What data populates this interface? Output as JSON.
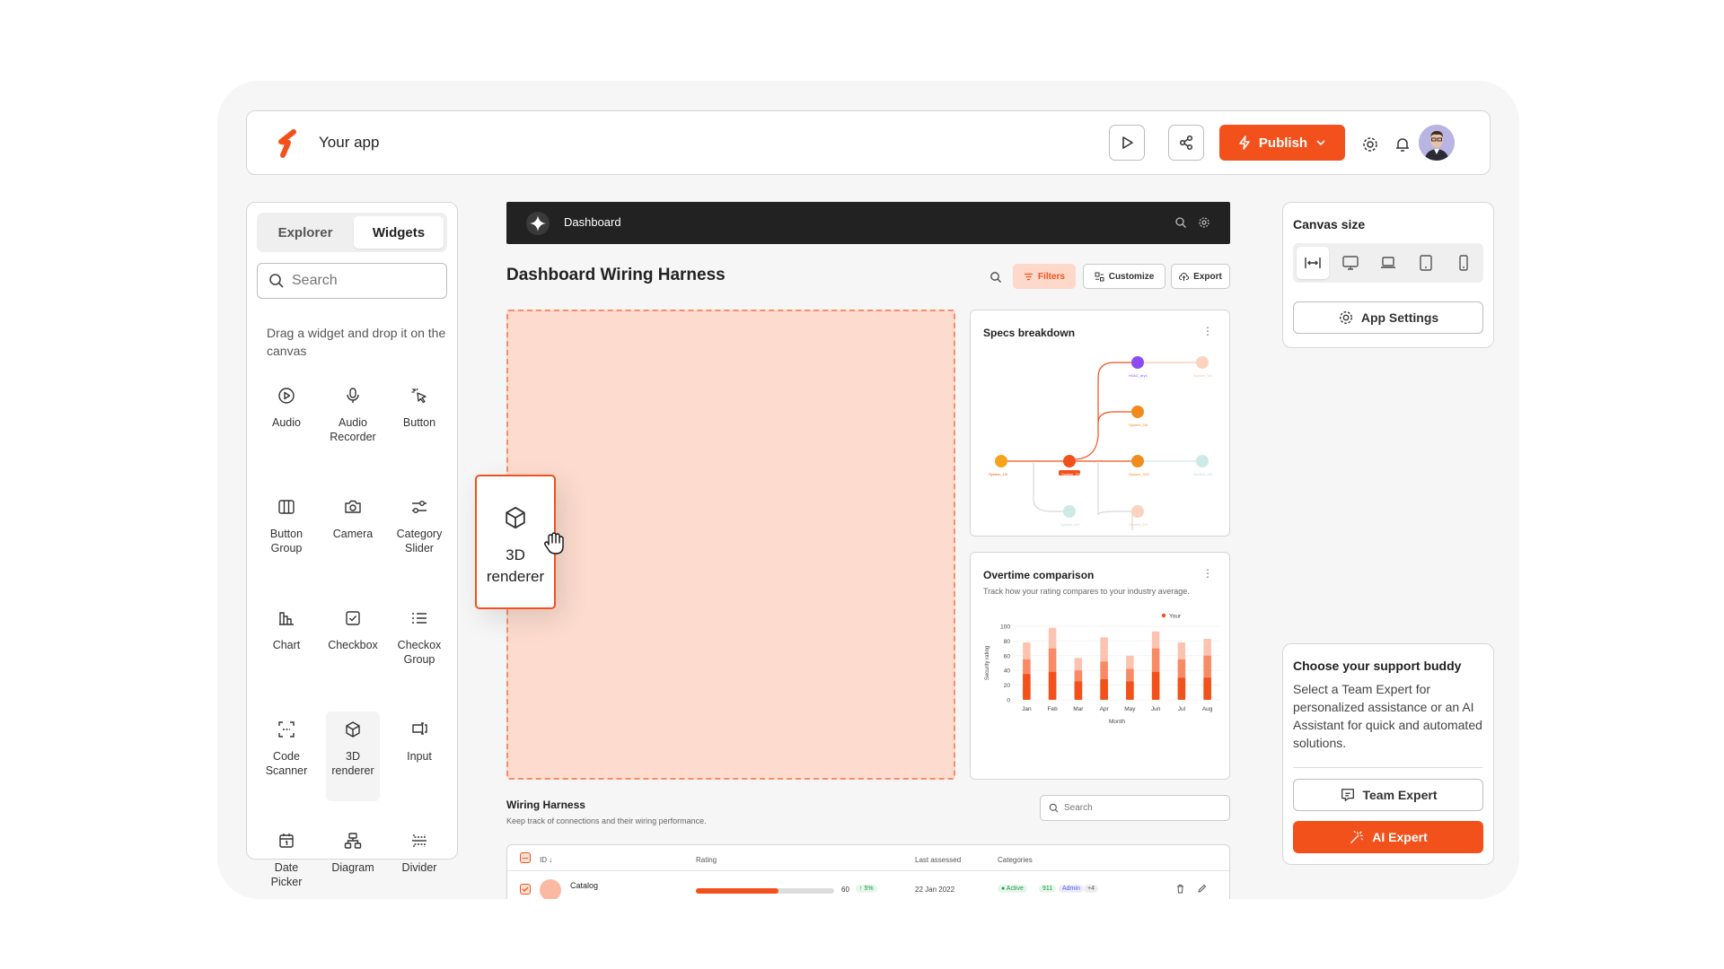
{
  "topbar": {
    "app_name": "Your app",
    "publish_label": "Publish"
  },
  "left_panel": {
    "tabs": [
      {
        "label": "Explorer",
        "active": false
      },
      {
        "label": "Widgets",
        "active": true
      }
    ],
    "search_placeholder": "Search",
    "hint": "Drag a widget and drop it on the canvas",
    "widgets": [
      {
        "label": "Audio",
        "icon": "play-circle-icon"
      },
      {
        "label": "Audio Recorder",
        "icon": "microphone-icon"
      },
      {
        "label": "Button",
        "icon": "cursor-click-icon"
      },
      {
        "label": "Button Group",
        "icon": "columns-icon"
      },
      {
        "label": "Camera",
        "icon": "camera-icon"
      },
      {
        "label": "Category Slider",
        "icon": "slider-icon"
      },
      {
        "label": "Chart",
        "icon": "bar-chart-icon"
      },
      {
        "label": "Checkbox",
        "icon": "checkbox-icon"
      },
      {
        "label": "Checkox Group",
        "icon": "list-icon"
      },
      {
        "label": "Code Scanner",
        "icon": "scan-icon"
      },
      {
        "label": "3D renderer",
        "icon": "cube-icon"
      },
      {
        "label": "Input",
        "icon": "input-icon"
      },
      {
        "label": "Date Picker",
        "icon": "calendar-icon"
      },
      {
        "label": "Diagram",
        "icon": "diagram-icon"
      },
      {
        "label": "Divider",
        "icon": "divider-icon"
      }
    ]
  },
  "canvas": {
    "app_bar_title": "Dashboard",
    "page_title": "Dashboard Wiring Harness",
    "toolbar": {
      "filters": "Filters",
      "customize": "Customize",
      "export": "Export"
    },
    "drag_widget_label": "3D renderer",
    "specs_card": {
      "title": "Specs breakdown",
      "nodes": [
        "System_1/0",
        "System_2/0",
        "HVAC_dry1",
        "System_2/8",
        "System_3/47",
        "System_3/0",
        "System_4/0",
        "System_5/0",
        "System_6/0"
      ]
    },
    "overtime_card": {
      "title": "Overtime comparison",
      "description": "Track how your rating compares to your industry average.",
      "legend": "Your"
    },
    "wiring": {
      "title": "Wiring Harness",
      "description": "Keep track of connections and their wiring performance.",
      "search_placeholder": "Search",
      "columns": [
        "ID",
        "Rating",
        "Last assessed",
        "Categories"
      ],
      "row": {
        "name": "Catalog",
        "rating_value": "60",
        "rating_fraction": 0.6,
        "rating_change": "↑ 5%",
        "last_assessed": "22 Jan 2022",
        "categories": [
          "Active",
          "911",
          "Admin",
          "+4"
        ]
      }
    }
  },
  "chart_data": {
    "type": "bar",
    "title": "",
    "xlabel": "Month",
    "ylabel": "Security rating",
    "ylim": [
      0,
      100
    ],
    "yticks": [
      0,
      20,
      40,
      60,
      80,
      100
    ],
    "categories": [
      "Jan",
      "Feb",
      "Mar",
      "Apr",
      "May",
      "Jun",
      "Jul",
      "Aug"
    ],
    "series": [
      {
        "name": "Your",
        "values": [
          78,
          98,
          57,
          85,
          60,
          93,
          78,
          83
        ]
      },
      {
        "values": [
          55,
          70,
          40,
          52,
          42,
          70,
          55,
          60
        ]
      },
      {
        "values": [
          35,
          38,
          25,
          28,
          25,
          38,
          30,
          30
        ]
      }
    ],
    "legend": "top-right",
    "colors": [
      "#fcc4b0",
      "#f98a66",
      "#f2511b"
    ]
  },
  "right_panel": {
    "canvas_size_title": "Canvas size",
    "sizes": [
      {
        "icon": "fit-width-icon",
        "active": true
      },
      {
        "icon": "desktop-icon",
        "active": false
      },
      {
        "icon": "laptop-icon",
        "active": false
      },
      {
        "icon": "tablet-icon",
        "active": false
      },
      {
        "icon": "mobile-icon",
        "active": false
      }
    ],
    "app_settings_label": "App Settings",
    "support": {
      "title": "Choose your support buddy",
      "description": "Select a Team Expert for personalized assistance or an AI Assistant for quick and automated solutions.",
      "team_expert_label": "Team Expert",
      "ai_expert_label": "AI Expert"
    }
  },
  "colors": {
    "accent": "#f2511b",
    "accent_light": "#fddccf"
  }
}
